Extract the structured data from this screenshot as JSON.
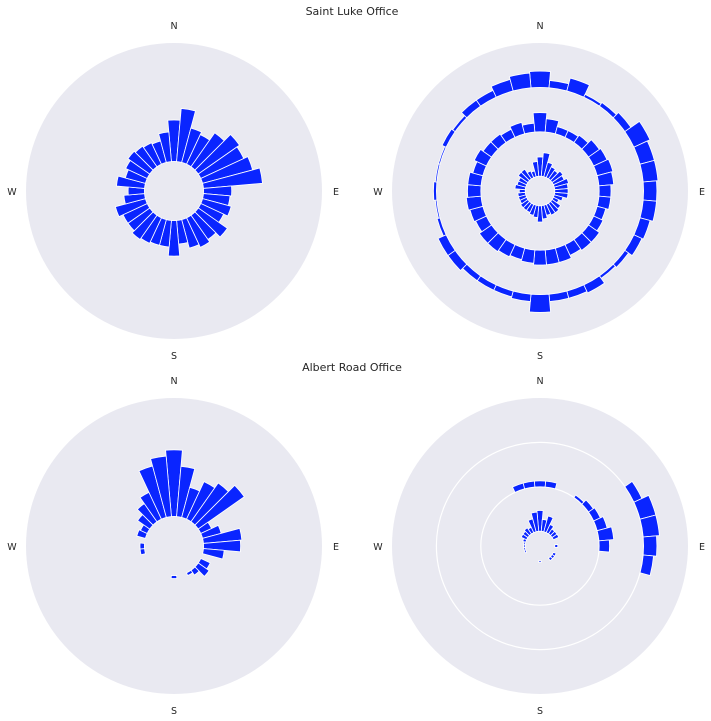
{
  "figure": {
    "background": "#ffffff",
    "panel_background": "#e9e9f1",
    "grid_color": "#ffffff",
    "bar_color": "#0a25ff",
    "bar_edge_color": "#ffffff",
    "sections": [
      {
        "title": "Saint Luke Office"
      },
      {
        "title": "Albert Road Office"
      }
    ],
    "compass_labels": {
      "north": "N",
      "east": "E",
      "south": "S",
      "west": "W"
    }
  },
  "chart_data": [
    {
      "type": "polar-bar",
      "panel": "top-left",
      "section": "Saint Luke Office",
      "theta_zero": "N",
      "direction": "clockwise",
      "grid": false,
      "rlim": [
        0,
        100
      ],
      "bar_width_deg": 10,
      "bottom": 20,
      "directions_deg": [
        0,
        10,
        20,
        30,
        40,
        50,
        60,
        70,
        80,
        90,
        100,
        110,
        120,
        130,
        140,
        150,
        160,
        170,
        180,
        190,
        200,
        210,
        220,
        230,
        240,
        250,
        260,
        270,
        280,
        290,
        300,
        310,
        320,
        330,
        340,
        350
      ],
      "values": [
        [
          28,
          36,
          24,
          22,
          28,
          34,
          32,
          35,
          40,
          19,
          18,
          20,
          17,
          24,
          20,
          22,
          20,
          16,
          24,
          18,
          18,
          19,
          20,
          18,
          18,
          21,
          14,
          11,
          19,
          14,
          16,
          18,
          17,
          16,
          15,
          20
        ]
      ]
    },
    {
      "type": "polar-bar",
      "panel": "top-right",
      "section": "Saint Luke Office",
      "theta_zero": "N",
      "direction": "clockwise",
      "grid": false,
      "rlim": [
        0,
        100
      ],
      "bar_width_deg": 10,
      "bottoms": [
        10,
        40,
        70
      ],
      "directions_deg": [
        0,
        10,
        20,
        30,
        40,
        50,
        60,
        70,
        80,
        90,
        100,
        110,
        120,
        130,
        140,
        150,
        160,
        170,
        180,
        190,
        200,
        210,
        220,
        230,
        240,
        250,
        260,
        270,
        280,
        290,
        300,
        310,
        320,
        330,
        340,
        350
      ],
      "series": [
        {
          "ring": "inner",
          "values": [
            13,
            16,
            10,
            8,
            7,
            9,
            8,
            10,
            9,
            9,
            9,
            6,
            4,
            7,
            8,
            8,
            7,
            9,
            11,
            8,
            7,
            6,
            6,
            6,
            5,
            5,
            5,
            4,
            7,
            6,
            6,
            8,
            8,
            5,
            4,
            10
          ]
        },
        {
          "ring": "middle",
          "values": [
            13,
            9,
            5,
            5,
            6,
            9,
            10,
            11,
            10,
            8,
            8,
            6,
            7,
            9,
            9,
            8,
            10,
            10,
            10,
            9,
            8,
            9,
            10,
            10,
            8,
            9,
            10,
            9,
            9,
            7,
            9,
            7,
            7,
            6,
            8,
            6
          ]
        },
        {
          "ring": "outer",
          "values": [
            11,
            5,
            9,
            2,
            3,
            5,
            12,
            10,
            10,
            9,
            9,
            7,
            6,
            3,
            2,
            6,
            5,
            5,
            12,
            5,
            4,
            4,
            4,
            6,
            6,
            2,
            1,
            2,
            1,
            1,
            3,
            2,
            5,
            5,
            8,
            10
          ]
        }
      ]
    },
    {
      "type": "polar-bar",
      "panel": "bottom-left",
      "section": "Albert Road Office",
      "theta_zero": "N",
      "direction": "clockwise",
      "grid": false,
      "rlim": [
        0,
        100
      ],
      "bar_width_deg": 10,
      "bottom": 20,
      "directions_deg": [
        0,
        10,
        20,
        30,
        40,
        50,
        60,
        70,
        80,
        90,
        100,
        110,
        120,
        130,
        140,
        150,
        160,
        170,
        180,
        190,
        200,
        210,
        220,
        230,
        240,
        250,
        260,
        270,
        280,
        290,
        300,
        310,
        320,
        330,
        340,
        350
      ],
      "values": [
        [
          45,
          34,
          21,
          28,
          32,
          38,
          8,
          13,
          26,
          25,
          14,
          0,
          7,
          9,
          4,
          2,
          0,
          0,
          2,
          0,
          0,
          0,
          0,
          0,
          0,
          0,
          3,
          3,
          0,
          6,
          5,
          10,
          15,
          20,
          36,
          41
        ]
      ]
    },
    {
      "type": "polar-bar",
      "panel": "bottom-right",
      "section": "Albert Road Office",
      "theta_zero": "N",
      "direction": "clockwise",
      "grid": true,
      "rlim": [
        0,
        100
      ],
      "bar_width_deg": 10,
      "bottoms": [
        10,
        40,
        70
      ],
      "directions_deg": [
        0,
        10,
        20,
        30,
        40,
        50,
        60,
        70,
        80,
        90,
        100,
        110,
        120,
        130,
        140,
        150,
        160,
        170,
        180,
        190,
        200,
        210,
        220,
        230,
        240,
        250,
        260,
        270,
        280,
        290,
        300,
        310,
        320,
        330,
        340,
        350
      ],
      "series": [
        {
          "ring": "inner",
          "values": [
            14,
            8,
            11,
            6,
            4,
            4,
            4,
            0,
            0,
            2,
            0,
            0,
            2,
            2,
            2,
            0,
            0,
            0,
            1,
            0,
            0,
            0,
            0,
            0,
            0,
            1,
            1,
            1,
            1,
            2,
            4,
            4,
            5,
            4,
            9,
            13
          ]
        },
        {
          "ring": "middle",
          "values": [
            4,
            4,
            0,
            0,
            2,
            4,
            5,
            7,
            10,
            7,
            0,
            0,
            0,
            0,
            0,
            0,
            0,
            0,
            0,
            0,
            0,
            0,
            0,
            0,
            0,
            0,
            0,
            0,
            0,
            0,
            0,
            0,
            0,
            0,
            4,
            4
          ]
        },
        {
          "ring": "outer",
          "values": [
            0,
            0,
            0,
            0,
            0,
            0,
            6,
            11,
            11,
            9,
            7,
            0,
            0,
            0,
            0,
            0,
            0,
            0,
            0,
            0,
            0,
            0,
            0,
            0,
            0,
            0,
            0,
            0,
            0,
            0,
            0,
            0,
            0,
            0,
            0,
            0
          ]
        }
      ]
    }
  ]
}
